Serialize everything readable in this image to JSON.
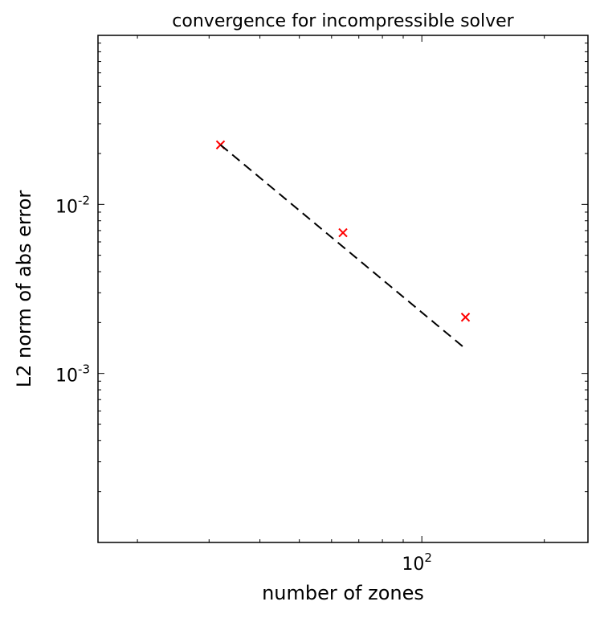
{
  "chart_data": {
    "type": "scatter",
    "title": "convergence for incompressible solver",
    "xlabel": "number of zones",
    "ylabel": "L2 norm of abs error",
    "xscale": "log",
    "yscale": "log",
    "xlim": [
      16,
      256
    ],
    "ylim": [
      0.0001,
      0.1
    ],
    "grid": false,
    "x_tick_labels": [
      {
        "value": 100,
        "base": "10",
        "exp": "2"
      }
    ],
    "y_tick_labels": [
      {
        "value": 0.01,
        "base": "10",
        "exp": "-2"
      },
      {
        "value": 0.001,
        "base": "10",
        "exp": "-3"
      }
    ],
    "series": [
      {
        "kind": "scatter",
        "marker": "x",
        "color": "#ff0000",
        "x": [
          32,
          64,
          128
        ],
        "y": [
          0.0225,
          0.0068,
          0.00215
        ]
      },
      {
        "kind": "line",
        "style": "dashed",
        "color": "#000000",
        "x": [
          32,
          128
        ],
        "y": [
          0.0225,
          0.0014
        ]
      }
    ]
  }
}
